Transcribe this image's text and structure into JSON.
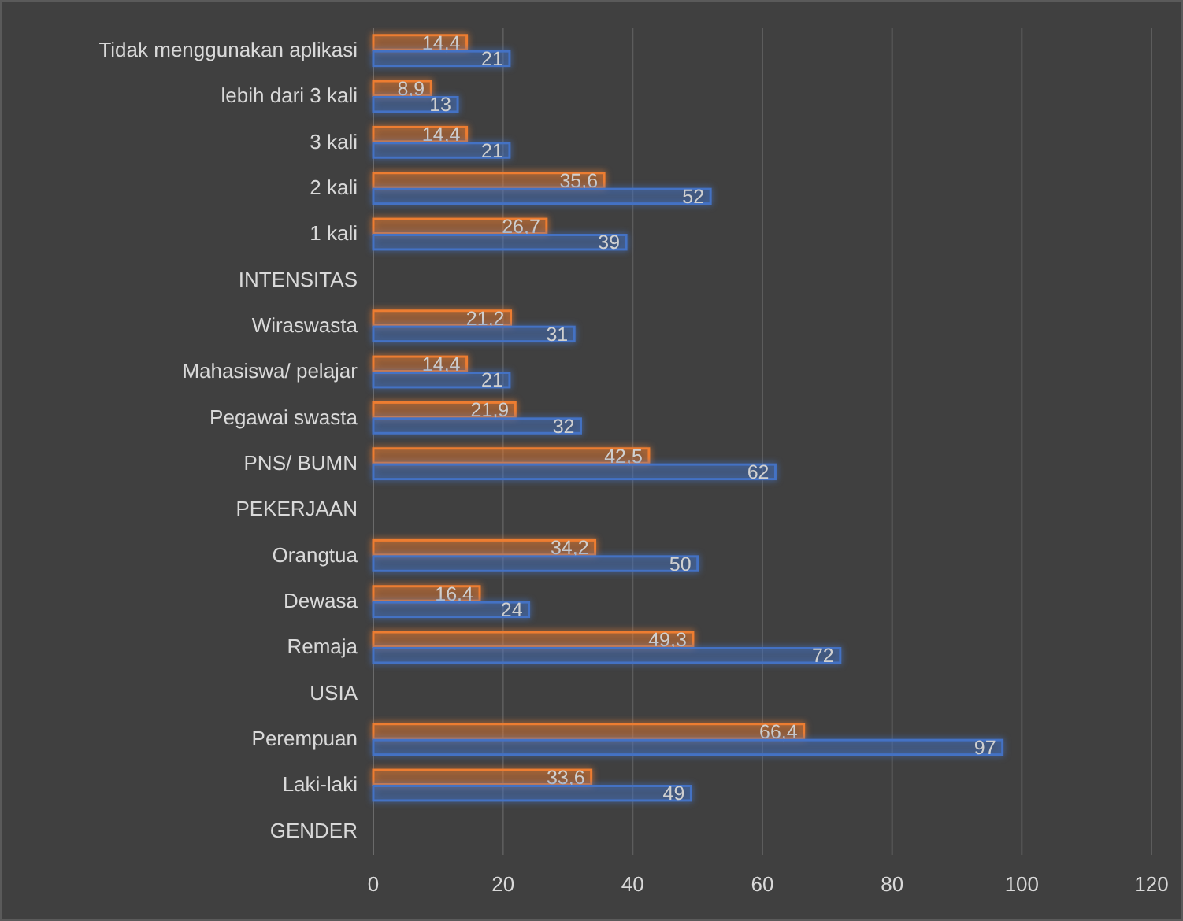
{
  "chart_data": {
    "type": "bar",
    "orientation": "horizontal",
    "categories": [
      "Tidak menggunakan aplikasi",
      "lebih dari 3 kali",
      "3 kali",
      "2 kali",
      "1 kali",
      "INTENSITAS",
      "Wiraswasta",
      "Mahasiswa/ pelajar",
      "Pegawai swasta",
      "PNS/ BUMN",
      "PEKERJAAN",
      "Orangtua",
      "Dewasa",
      "Remaja",
      "USIA",
      "Perempuan",
      "Laki-laki",
      "GENDER"
    ],
    "series": [
      {
        "color": "#ed7d31",
        "values": [
          14.4,
          8.9,
          14.4,
          35.6,
          26.7,
          null,
          21.2,
          14.4,
          21.9,
          42.5,
          null,
          34.2,
          16.4,
          49.3,
          null,
          66.4,
          33.6,
          null
        ],
        "value_labels": [
          "14,4",
          "8,9",
          "14,4",
          "35,6",
          "26,7",
          null,
          "21,2",
          "14,4",
          "21,9",
          "42,5",
          null,
          "34,2",
          "16,4",
          "49,3",
          null,
          "66,4",
          "33,6",
          null
        ]
      },
      {
        "color": "#4472c4",
        "values": [
          21,
          13,
          21,
          52,
          39,
          null,
          31,
          21,
          32,
          62,
          null,
          50,
          24,
          72,
          null,
          97,
          49,
          null
        ],
        "value_labels": [
          "21",
          "13",
          "21",
          "52",
          "39",
          null,
          "31",
          "21",
          "32",
          "62",
          null,
          "50",
          "24",
          "72",
          null,
          "97",
          "49",
          null
        ]
      }
    ],
    "xlim": [
      0,
      120
    ],
    "xticks": [
      0,
      20,
      40,
      60,
      80,
      100,
      120
    ],
    "grid": "x"
  }
}
